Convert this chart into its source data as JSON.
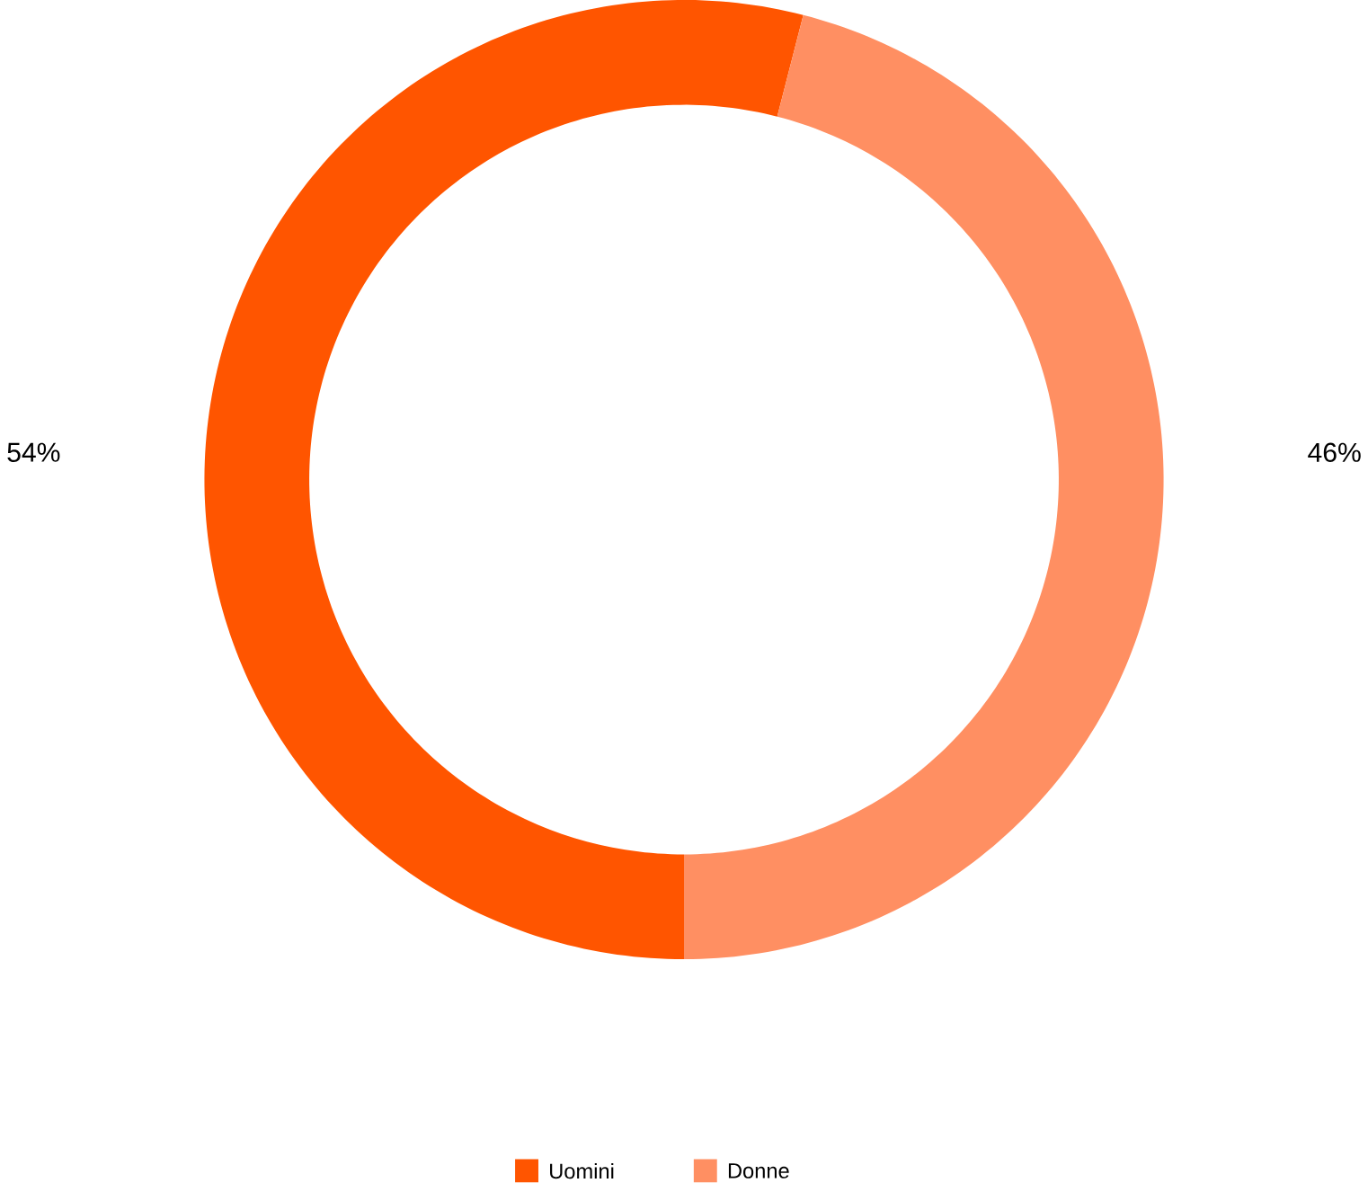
{
  "chart_data": {
    "type": "donut",
    "categories": [
      "Uomini",
      "Donne"
    ],
    "values": [
      54,
      46
    ],
    "colors": [
      "#ff5500",
      "#ff8f62"
    ],
    "value_labels": [
      "54%",
      "46%"
    ],
    "legend": "bottom"
  }
}
